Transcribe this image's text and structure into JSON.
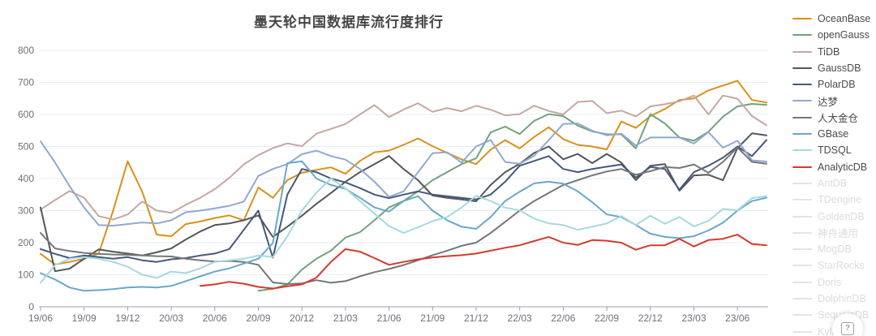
{
  "title": "墨天轮中国数据库流行度排行",
  "help_button": {
    "glyph": "?"
  },
  "legend": {
    "position": "right",
    "items": [
      {
        "label": "OceanBase",
        "color": "#D9901A",
        "active": true
      },
      {
        "label": "openGauss",
        "color": "#70A27D",
        "active": true
      },
      {
        "label": "TiDB",
        "color": "#C6A7A1",
        "active": true
      },
      {
        "label": "GaussDB",
        "color": "#53565B",
        "active": true
      },
      {
        "label": "PolarDB",
        "color": "#44597A",
        "active": true
      },
      {
        "label": "达梦",
        "color": "#90A9D0",
        "active": true
      },
      {
        "label": "人大金仓",
        "color": "#747679",
        "active": true
      },
      {
        "label": "GBase",
        "color": "#69A8C9",
        "active": true
      },
      {
        "label": "TDSQL",
        "color": "#A7D8DF",
        "active": true
      },
      {
        "label": "AnalyticDB",
        "color": "#D43A2F",
        "active": true
      },
      {
        "label": "AntDB",
        "color": "#E4E4E4",
        "active": false
      },
      {
        "label": "TDengine",
        "color": "#E4E4E4",
        "active": false
      },
      {
        "label": "GoldenDB",
        "color": "#E4E4E4",
        "active": false
      },
      {
        "label": "神舟通用",
        "color": "#E4E4E4",
        "active": false
      },
      {
        "label": "MogDB",
        "color": "#E4E4E4",
        "active": false
      },
      {
        "label": "StarRocks",
        "color": "#E4E4E4",
        "active": false
      },
      {
        "label": "Doris",
        "color": "#E4E4E4",
        "active": false
      },
      {
        "label": "DolphinDB",
        "color": "#E4E4E4",
        "active": false
      },
      {
        "label": "SequoiaDB",
        "color": "#E4E4E4",
        "active": false
      },
      {
        "label": "Kyligence",
        "color": "#E4E4E4",
        "active": false
      }
    ]
  },
  "chart_data": {
    "type": "line",
    "title": "墨天轮中国数据库流行度排行",
    "xlabel": "",
    "ylabel": "",
    "ylim": [
      0,
      800
    ],
    "y_ticks": [
      0,
      100,
      200,
      300,
      400,
      500,
      600,
      700,
      800
    ],
    "grid": true,
    "x_tick_every": 3,
    "x_last_tick_index": 48,
    "x": [
      "19/06",
      "19/07",
      "19/08",
      "19/09",
      "19/10",
      "19/11",
      "19/12",
      "20/01",
      "20/02",
      "20/03",
      "20/04",
      "20/05",
      "20/06",
      "20/07",
      "20/08",
      "20/09",
      "20/10",
      "20/11",
      "20/12",
      "21/01",
      "21/02",
      "21/03",
      "21/04",
      "21/05",
      "21/06",
      "21/07",
      "21/08",
      "21/09",
      "21/10",
      "21/11",
      "21/12",
      "22/01",
      "22/02",
      "22/03",
      "22/04",
      "22/05",
      "22/06",
      "22/07",
      "22/08",
      "22/09",
      "22/10",
      "22/11",
      "22/12",
      "23/01",
      "23/02",
      "23/03",
      "23/04",
      "23/05",
      "23/06",
      "23/07",
      "23/08"
    ],
    "series": [
      {
        "name": "OceanBase",
        "color": "#D9901A",
        "values": [
          165,
          132,
          140,
          150,
          166,
          300,
          454,
          359,
          225,
          220,
          258,
          266,
          277,
          285,
          270,
          372,
          340,
          395,
          418,
          427,
          435,
          415,
          455,
          482,
          487,
          505,
          525,
          501,
          480,
          460,
          445,
          490,
          520,
          494,
          530,
          560,
          523,
          505,
          500,
          491,
          578,
          558,
          595,
          617,
          645,
          650,
          675,
          690,
          705,
          645,
          637
        ]
      },
      {
        "name": "openGauss",
        "color": "#70A27D",
        "values": [
          null,
          null,
          null,
          null,
          null,
          null,
          null,
          null,
          null,
          null,
          null,
          null,
          null,
          null,
          null,
          50,
          56,
          70,
          116,
          150,
          175,
          216,
          233,
          270,
          310,
          330,
          360,
          395,
          420,
          445,
          463,
          544,
          562,
          539,
          580,
          601,
          595,
          565,
          547,
          538,
          538,
          494,
          601,
          572,
          528,
          518,
          546,
          593,
          625,
          633,
          630
        ]
      },
      {
        "name": "TiDB",
        "color": "#C6A7A1",
        "values": [
          303,
          333,
          361,
          340,
          283,
          272,
          288,
          328,
          300,
          293,
          318,
          340,
          367,
          402,
          444,
          473,
          495,
          510,
          501,
          540,
          555,
          570,
          600,
          629,
          592,
          615,
          635,
          608,
          620,
          610,
          627,
          615,
          597,
          601,
          627,
          611,
          600,
          639,
          642,
          604,
          612,
          594,
          625,
          632,
          641,
          659,
          600,
          659,
          649,
          595,
          566
        ]
      },
      {
        "name": "GaussDB",
        "color": "#53565B",
        "values": [
          310,
          111,
          119,
          150,
          179,
          172,
          166,
          160,
          170,
          182,
          210,
          235,
          255,
          260,
          270,
          285,
          218,
          250,
          284,
          321,
          355,
          390,
          420,
          445,
          470,
          430,
          395,
          347,
          340,
          335,
          329,
          380,
          420,
          446,
          480,
          500,
          460,
          477,
          448,
          477,
          450,
          395,
          440,
          445,
          362,
          410,
          412,
          395,
          495,
          541,
          535
        ]
      },
      {
        "name": "PolarDB",
        "color": "#44597A",
        "values": [
          180,
          165,
          152,
          160,
          155,
          150,
          155,
          145,
          140,
          148,
          152,
          160,
          166,
          180,
          240,
          300,
          153,
          350,
          430,
          420,
          400,
          388,
          370,
          350,
          339,
          350,
          360,
          350,
          345,
          340,
          335,
          350,
          390,
          440,
          455,
          470,
          430,
          420,
          430,
          437,
          444,
          403,
          436,
          430,
          365,
          420,
          440,
          465,
          500,
          470,
          520
        ]
      },
      {
        "name": "达梦",
        "color": "#90A9D0",
        "values": [
          516,
          450,
          376,
          310,
          255,
          253,
          258,
          263,
          260,
          270,
          295,
          300,
          307,
          315,
          328,
          408,
          430,
          445,
          476,
          487,
          470,
          459,
          430,
          390,
          343,
          360,
          420,
          479,
          482,
          450,
          500,
          520,
          452,
          446,
          471,
          520,
          570,
          572,
          549,
          535,
          540,
          503,
          528,
          528,
          528,
          509,
          545,
          496,
          518,
          457,
          453
        ]
      },
      {
        "name": "人大金仓",
        "color": "#747679",
        "values": [
          230,
          182,
          174,
          168,
          165,
          163,
          162,
          160,
          158,
          157,
          150,
          145,
          141,
          143,
          140,
          131,
          76,
          71,
          73,
          83,
          75,
          80,
          95,
          108,
          118,
          130,
          145,
          161,
          175,
          190,
          200,
          230,
          265,
          300,
          330,
          355,
          380,
          395,
          410,
          422,
          430,
          412,
          423,
          436,
          433,
          444,
          418,
          452,
          497,
          452,
          446
        ]
      },
      {
        "name": "GBase",
        "color": "#69A8C9",
        "values": [
          105,
          85,
          60,
          50,
          52,
          55,
          60,
          62,
          60,
          65,
          80,
          95,
          110,
          120,
          135,
          150,
          199,
          448,
          454,
          400,
          380,
          368,
          340,
          310,
          297,
          330,
          345,
          300,
          270,
          250,
          243,
          280,
          330,
          359,
          385,
          390,
          384,
          360,
          326,
          288,
          280,
          255,
          228,
          218,
          214,
          220,
          238,
          262,
          300,
          330,
          340
        ]
      },
      {
        "name": "TDSQL",
        "color": "#A7D8DF",
        "values": [
          75,
          130,
          150,
          155,
          150,
          140,
          125,
          100,
          90,
          110,
          105,
          120,
          140,
          145,
          150,
          160,
          155,
          220,
          300,
          356,
          400,
          369,
          330,
          290,
          252,
          230,
          248,
          267,
          280,
          310,
          346,
          330,
          309,
          301,
          275,
          260,
          255,
          240,
          250,
          260,
          283,
          255,
          284,
          259,
          280,
          251,
          268,
          305,
          301,
          339,
          345
        ]
      },
      {
        "name": "AnalyticDB",
        "color": "#D43A2F",
        "values": [
          null,
          null,
          null,
          null,
          null,
          null,
          null,
          null,
          null,
          null,
          null,
          65,
          70,
          78,
          72,
          62,
          57,
          64,
          70,
          91,
          140,
          180,
          172,
          152,
          131,
          140,
          148,
          154,
          158,
          161,
          166,
          175,
          184,
          192,
          205,
          218,
          200,
          193,
          208,
          206,
          200,
          178,
          192,
          192,
          212,
          188,
          208,
          212,
          225,
          196,
          192
        ]
      }
    ],
    "inactive_series": [
      "AntDB",
      "TDengine",
      "GoldenDB",
      "神舟通用",
      "MogDB",
      "StarRocks",
      "Doris",
      "DolphinDB",
      "SequoiaDB",
      "Kyligence"
    ],
    "colors": {
      "grid_line": "#E6EEF6",
      "axis_line": "#9CA0A8",
      "axis_label": "#6E7079",
      "inactive_legend_text": "#DCDCDC"
    }
  }
}
